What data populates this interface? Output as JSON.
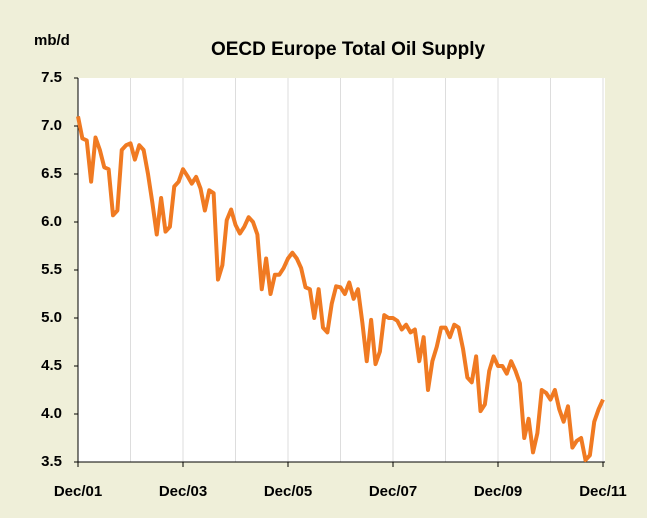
{
  "chart_data": {
    "type": "line",
    "title": "OECD Europe Total Oil Supply",
    "y_label": "mb/d",
    "categories": [
      "Dec/01",
      null,
      null,
      null,
      null,
      null,
      null,
      null,
      null,
      null,
      null,
      null,
      null,
      null,
      null,
      null,
      null,
      null,
      null,
      null,
      null,
      null,
      null,
      null,
      "Dec/03",
      null,
      null,
      null,
      null,
      null,
      null,
      null,
      null,
      null,
      null,
      null,
      null,
      null,
      null,
      null,
      null,
      null,
      null,
      null,
      null,
      null,
      null,
      null,
      "Dec/05",
      null,
      null,
      null,
      null,
      null,
      null,
      null,
      null,
      null,
      null,
      null,
      null,
      null,
      null,
      null,
      null,
      null,
      null,
      null,
      null,
      null,
      null,
      null,
      "Dec/07",
      null,
      null,
      null,
      null,
      null,
      null,
      null,
      null,
      null,
      null,
      null,
      null,
      null,
      null,
      null,
      null,
      null,
      null,
      null,
      null,
      null,
      null,
      null,
      "Dec/09",
      null,
      null,
      null,
      null,
      null,
      null,
      null,
      null,
      null,
      null,
      null,
      null,
      null,
      null,
      null,
      null,
      null,
      null,
      null,
      null,
      null,
      null,
      null,
      "Dec/11"
    ],
    "series": [
      {
        "name": "OECD Europe",
        "color": "#f07a22",
        "values": [
          7.1,
          6.87,
          6.85,
          6.42,
          6.88,
          6.75,
          6.57,
          6.55,
          6.07,
          6.12,
          6.75,
          6.8,
          6.82,
          6.65,
          6.8,
          6.75,
          6.5,
          6.2,
          5.87,
          6.25,
          5.9,
          5.95,
          6.37,
          6.42,
          6.55,
          6.48,
          6.4,
          6.47,
          6.35,
          6.12,
          6.33,
          6.3,
          5.4,
          5.55,
          6.02,
          6.13,
          5.97,
          5.88,
          5.95,
          6.05,
          6.0,
          5.87,
          5.3,
          5.62,
          5.25,
          5.45,
          5.45,
          5.52,
          5.62,
          5.68,
          5.62,
          5.52,
          5.32,
          5.3,
          5.0,
          5.3,
          4.9,
          4.85,
          5.15,
          5.33,
          5.32,
          5.25,
          5.37,
          5.2,
          5.3,
          4.95,
          4.55,
          4.98,
          4.52,
          4.65,
          5.03,
          5.0,
          5.0,
          4.97,
          4.88,
          4.93,
          4.85,
          4.88,
          4.55,
          4.8,
          4.25,
          4.55,
          4.7,
          4.9,
          4.9,
          4.8,
          4.93,
          4.9,
          4.68,
          4.38,
          4.33,
          4.6,
          4.03,
          4.1,
          4.45,
          4.6,
          4.5,
          4.5,
          4.42,
          4.55,
          4.45,
          4.32,
          3.75,
          3.95,
          3.6,
          3.8,
          4.25,
          4.22,
          4.15,
          4.25,
          4.05,
          3.92,
          4.08,
          3.65,
          3.72,
          3.75,
          3.52,
          3.57,
          3.92,
          4.05,
          4.15
        ]
      }
    ],
    "ylim": [
      3.5,
      7.5
    ],
    "yticks": [
      {
        "value": 3.5,
        "label": "3.5"
      },
      {
        "value": 4,
        "label": "4.0"
      },
      {
        "value": 4.5,
        "label": "4.5"
      },
      {
        "value": 5,
        "label": "5.0"
      },
      {
        "value": 5.5,
        "label": "5.5"
      },
      {
        "value": 6,
        "label": "6.0"
      },
      {
        "value": 6.5,
        "label": "6.5"
      },
      {
        "value": 7,
        "label": "7.0"
      },
      {
        "value": 7.5,
        "label": "7.5"
      }
    ],
    "grid": true
  }
}
